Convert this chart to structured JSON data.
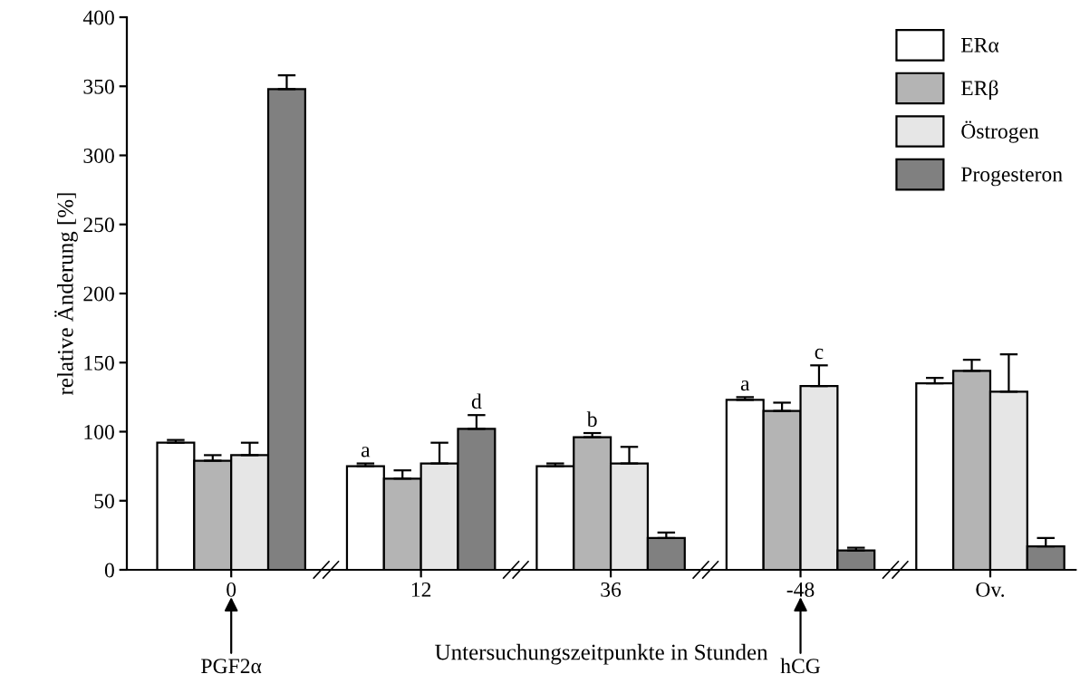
{
  "chart_data": {
    "type": "bar",
    "xlabel": "Untersuchungszeitpunkte in Stunden",
    "ylabel": "relative Änderung [%]",
    "categories": [
      "0",
      "12",
      "36",
      "-48",
      "Ov."
    ],
    "series": [
      {
        "name": "ERα",
        "color": "#ffffff",
        "values": [
          92,
          75,
          75,
          123,
          135
        ],
        "errors": [
          [
            92,
            94
          ],
          [
            75,
            77
          ],
          [
            75,
            77
          ],
          [
            123,
            125
          ],
          [
            135,
            139
          ]
        ]
      },
      {
        "name": "ERβ",
        "color": "#b4b4b4",
        "values": [
          79,
          66,
          96,
          115,
          144
        ],
        "errors": [
          [
            79,
            83
          ],
          [
            66,
            72
          ],
          [
            96,
            99
          ],
          [
            115,
            121
          ],
          [
            144,
            152
          ]
        ]
      },
      {
        "name": "Östrogen",
        "color": "#e6e6e6",
        "values": [
          83,
          77,
          77,
          133,
          129
        ],
        "errors": [
          [
            83,
            92
          ],
          [
            77,
            92
          ],
          [
            77,
            89
          ],
          [
            133,
            148
          ],
          [
            129,
            156
          ]
        ]
      },
      {
        "name": "Progesteron",
        "color": "#808080",
        "values": [
          348,
          102,
          23,
          14,
          17
        ],
        "errors": [
          [
            348,
            358
          ],
          [
            102,
            112
          ],
          [
            23,
            27
          ],
          [
            14,
            16
          ],
          [
            17,
            23
          ]
        ]
      }
    ],
    "ylim": [
      0,
      400
    ],
    "yticks": [
      0,
      50,
      100,
      150,
      200,
      250,
      300,
      350,
      400
    ],
    "grid": false,
    "legend": "top right",
    "annotations": [
      {
        "text": "a",
        "x": "12",
        "y": 75
      },
      "d",
      {
        "text": "b",
        "x": "36",
        "y": 96
      },
      {
        "text": "a",
        "x": "-48",
        "y": 123
      },
      {
        "text": "c",
        "x": "-48",
        "y": 133
      },
      "PGF2α",
      "hCG"
    ]
  }
}
